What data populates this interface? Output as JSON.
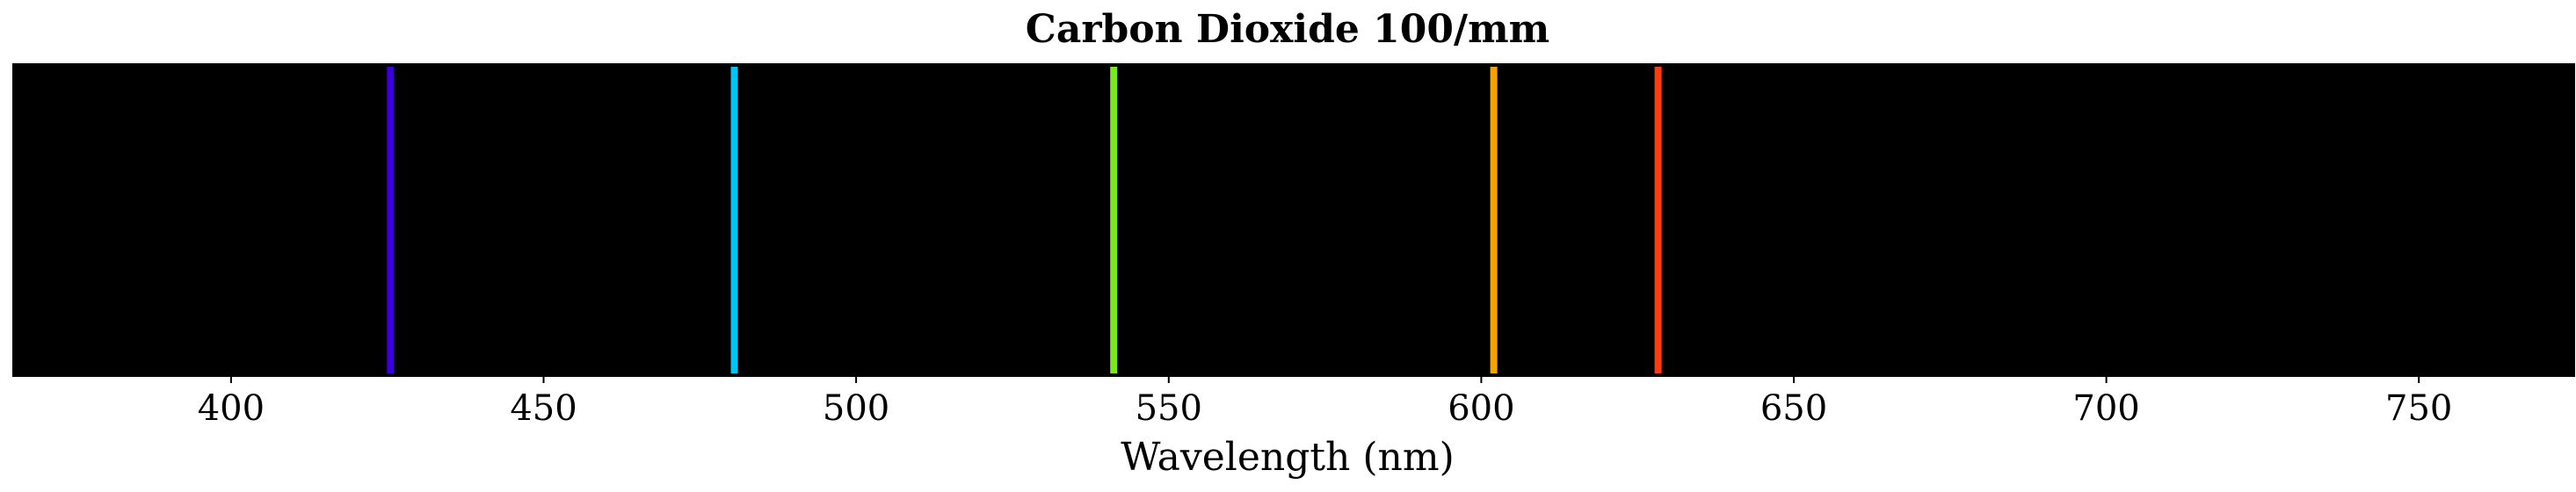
{
  "chart_data": {
    "type": "spectrum",
    "title": "Carbon Dioxide 100/mm",
    "xlabel": "Wavelength (nm)",
    "ylabel": "",
    "xlim": [
      365,
      775
    ],
    "xticks": [
      400,
      450,
      500,
      550,
      600,
      650,
      700,
      750
    ],
    "tick_labels": [
      "400",
      "450",
      "500",
      "550",
      "600",
      "650",
      "700",
      "750"
    ],
    "background_color": "#000000",
    "grid": false,
    "lines": [
      {
        "wavelength": 425.5,
        "color": "#3a00e0"
      },
      {
        "wavelength": 480.5,
        "color": "#00c4f2"
      },
      {
        "wavelength": 541.2,
        "color": "#7be81e"
      },
      {
        "wavelength": 602.0,
        "color": "#f5a300"
      },
      {
        "wavelength": 628.3,
        "color": "#ff3b0f"
      }
    ]
  }
}
